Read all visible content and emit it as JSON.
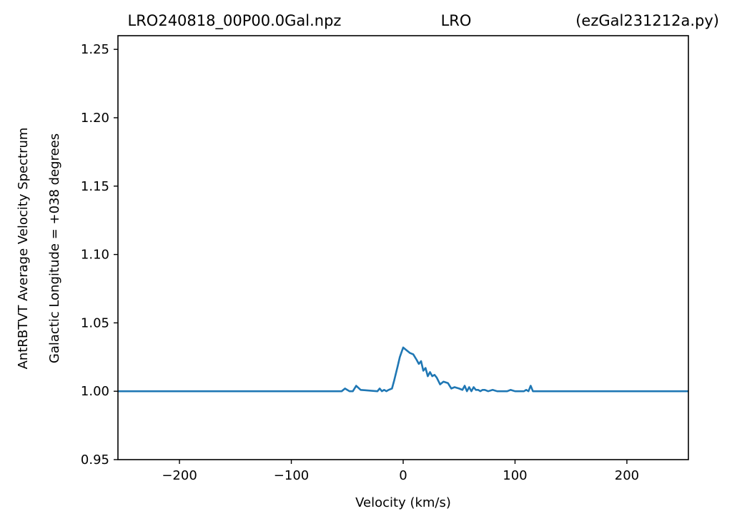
{
  "chart_data": {
    "type": "line",
    "title_left": "LRO240818_00P00.0Gal.npz",
    "title_center": "LRO",
    "title_right": "(ezGal231212a.py)",
    "xlabel": "Velocity (km/s)",
    "ylabel_line1": "AntRBTVT Average Velocity Spectrum",
    "ylabel_line2": "Galactic Longitude = +038 degrees",
    "xlim": [
      -255,
      255
    ],
    "ylim": [
      0.95,
      1.26
    ],
    "xticks": [
      -200,
      -100,
      0,
      100,
      200
    ],
    "xtick_labels": [
      "−200",
      "−100",
      "0",
      "100",
      "200"
    ],
    "yticks": [
      0.95,
      1.0,
      1.05,
      1.1,
      1.15,
      1.2,
      1.25
    ],
    "ytick_labels": [
      "0.95",
      "1.00",
      "1.05",
      "1.10",
      "1.15",
      "1.20",
      "1.25"
    ],
    "grid": false,
    "line_color": "#1f77b4",
    "series": [
      {
        "x": [
          -255,
          -65,
          -55,
          -52,
          -48,
          -45,
          -42,
          -38,
          -23,
          -21,
          -19,
          -17,
          -15,
          -13,
          -10,
          -8,
          -5,
          -3,
          0,
          3,
          6,
          9,
          12,
          14,
          16,
          18,
          20,
          22,
          24,
          26,
          28,
          30,
          33,
          36,
          40,
          43,
          46,
          50,
          53,
          55,
          57,
          59,
          61,
          63,
          65,
          67,
          69,
          71,
          73,
          76,
          80,
          84,
          88,
          93,
          96,
          100,
          104,
          108,
          110,
          112,
          114,
          116,
          255
        ],
        "y": [
          1.0,
          1.0,
          1.0,
          1.002,
          1.0,
          1.0,
          1.004,
          1.001,
          1.0,
          1.002,
          1.0,
          1.001,
          1.0,
          1.001,
          1.002,
          1.008,
          1.018,
          1.025,
          1.032,
          1.03,
          1.028,
          1.027,
          1.023,
          1.02,
          1.022,
          1.015,
          1.017,
          1.011,
          1.014,
          1.011,
          1.012,
          1.01,
          1.005,
          1.007,
          1.006,
          1.002,
          1.003,
          1.002,
          1.001,
          1.004,
          1.0,
          1.003,
          1.0,
          1.003,
          1.001,
          1.001,
          1.0,
          1.001,
          1.001,
          1.0,
          1.001,
          1.0,
          1.0,
          1.0,
          1.001,
          1.0,
          1.0,
          1.0,
          1.001,
          1.0,
          1.004,
          1.0,
          1.0
        ]
      }
    ]
  }
}
